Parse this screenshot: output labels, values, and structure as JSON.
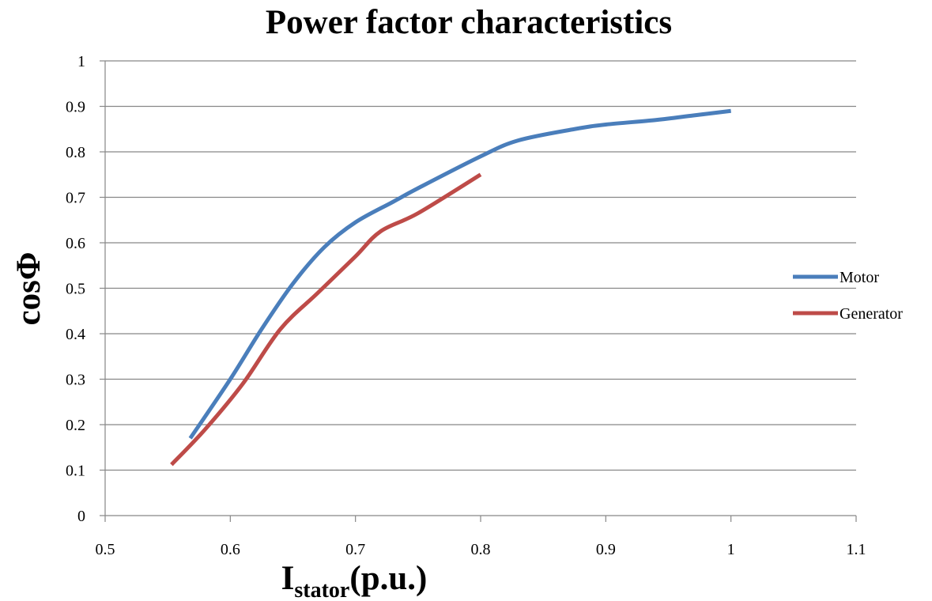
{
  "chart_data": {
    "type": "line",
    "title": "Power factor characteristics",
    "xlabel": {
      "main": "I",
      "sub": "stator",
      "suffix": "(p.u.)"
    },
    "ylabel": "cosΦ",
    "xlim": [
      0.5,
      1.1
    ],
    "ylim": [
      0,
      1
    ],
    "x_ticks": [
      0.5,
      0.6,
      0.7,
      0.8,
      0.9,
      1,
      1.1
    ],
    "x_tick_labels": [
      "0.5",
      "0.6",
      "0.7",
      "0.8",
      "0.9",
      "1",
      "1.1"
    ],
    "y_ticks": [
      0,
      0.1,
      0.2,
      0.3,
      0.4,
      0.5,
      0.6,
      0.7,
      0.8,
      0.9,
      1
    ],
    "y_tick_labels": [
      "0",
      "0.1",
      "0.2",
      "0.3",
      "0.4",
      "0.5",
      "0.6",
      "0.7",
      "0.8",
      "0.9",
      "1"
    ],
    "grid": {
      "horizontal": true,
      "vertical": false
    },
    "legend_position": "right",
    "series": [
      {
        "name": "Motor",
        "color": "#4a7ebb",
        "points": [
          [
            0.568,
            0.17
          ],
          [
            0.6,
            0.3
          ],
          [
            0.625,
            0.41
          ],
          [
            0.65,
            0.51
          ],
          [
            0.675,
            0.59
          ],
          [
            0.7,
            0.645
          ],
          [
            0.73,
            0.69
          ],
          [
            0.75,
            0.72
          ],
          [
            0.8,
            0.79
          ],
          [
            0.83,
            0.825
          ],
          [
            0.875,
            0.85
          ],
          [
            0.9,
            0.86
          ],
          [
            0.94,
            0.87
          ],
          [
            0.97,
            0.88
          ],
          [
            1,
            0.89
          ]
        ]
      },
      {
        "name": "Generator",
        "color": "#be4b48",
        "points": [
          [
            0.553,
            0.112
          ],
          [
            0.58,
            0.19
          ],
          [
            0.61,
            0.29
          ],
          [
            0.64,
            0.41
          ],
          [
            0.67,
            0.49
          ],
          [
            0.7,
            0.57
          ],
          [
            0.72,
            0.625
          ],
          [
            0.75,
            0.665
          ],
          [
            0.8,
            0.75
          ]
        ]
      }
    ]
  }
}
